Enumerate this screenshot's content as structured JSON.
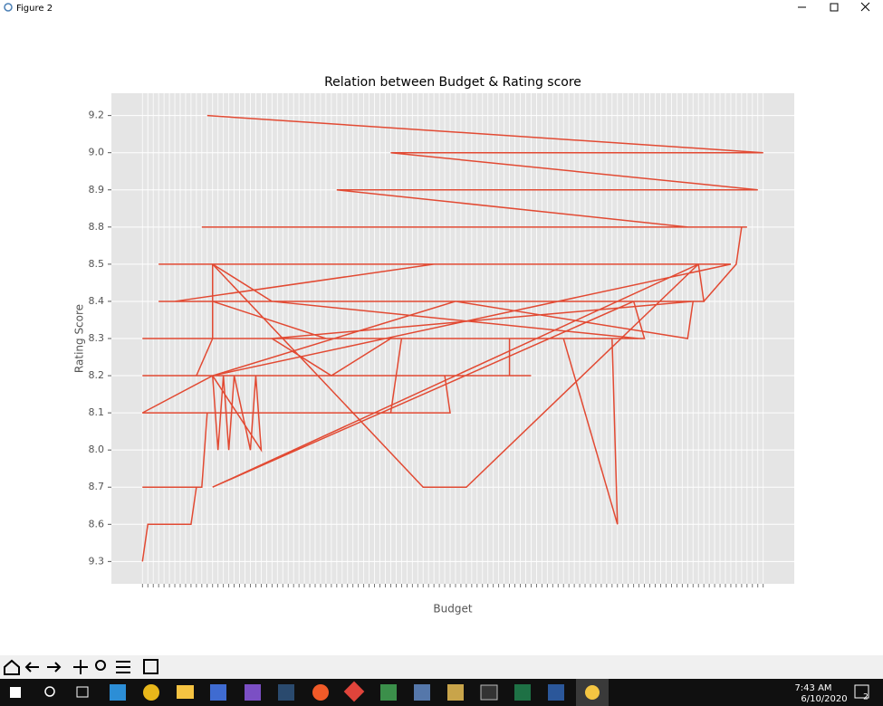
{
  "window": {
    "title": "Figure 2"
  },
  "chart_data": {
    "type": "line",
    "title": "Relation between Budget & Rating score",
    "xlabel": "Budget",
    "ylabel": "Rating Score",
    "categories": [
      null,
      null,
      null,
      null,
      null,
      null,
      null,
      null,
      null,
      null,
      null,
      null,
      null,
      null,
      null,
      null,
      null,
      null,
      null,
      null,
      null,
      null,
      null,
      null,
      null,
      null,
      null,
      null,
      null,
      null,
      null,
      null,
      null,
      null,
      null,
      null,
      null,
      null,
      null,
      null,
      null,
      null,
      null,
      null,
      null,
      null,
      null,
      null,
      null,
      null,
      null,
      null,
      null,
      null,
      null,
      null,
      null,
      null,
      null,
      null,
      null,
      null,
      null,
      null,
      null,
      null,
      null,
      null,
      null,
      null,
      null,
      null,
      null,
      null,
      null,
      null,
      null,
      null,
      null,
      null,
      null,
      null,
      null,
      null,
      null,
      null,
      null,
      null,
      null,
      null,
      null,
      null,
      null,
      null,
      null,
      null,
      null,
      null,
      null,
      null,
      null,
      null,
      null,
      null,
      null,
      null,
      null,
      null,
      null,
      null,
      null,
      null,
      null,
      null,
      null,
      null
    ],
    "xlim": [
      -5.75,
      120.75
    ],
    "ylim": [
      -0.6,
      12.6
    ],
    "yticks": [
      {
        "value": 0,
        "label": "9.3"
      },
      {
        "value": 1,
        "label": "8.6"
      },
      {
        "value": 2,
        "label": "8.7"
      },
      {
        "value": 3,
        "label": "8.0"
      },
      {
        "value": 4,
        "label": "8.1"
      },
      {
        "value": 5,
        "label": "8.2"
      },
      {
        "value": 6,
        "label": "8.3"
      },
      {
        "value": 7,
        "label": "8.4"
      },
      {
        "value": 8,
        "label": "8.5"
      },
      {
        "value": 9,
        "label": "8.8"
      },
      {
        "value": 10,
        "label": "8.9"
      },
      {
        "value": 11,
        "label": "9.0"
      },
      {
        "value": 12,
        "label": "9.2"
      }
    ],
    "grid": true,
    "series": [
      {
        "color": "#e24a33",
        "x": [
          0,
          1,
          9,
          10,
          0,
          11,
          12,
          0,
          13,
          14,
          15,
          16,
          17,
          20,
          21,
          22,
          13,
          0,
          10,
          13,
          0,
          13,
          13,
          3,
          13,
          24,
          3,
          13,
          34,
          48,
          46,
          0,
          57,
          56,
          0,
          72,
          68,
          68,
          13,
          93,
          91,
          13,
          104,
          103,
          13,
          52,
          60,
          103,
          13,
          91,
          24,
          92,
          78,
          88,
          87,
          13,
          46,
          35,
          24,
          102,
          101,
          58,
          13,
          109,
          3,
          54,
          6,
          104,
          110,
          111,
          11,
          112,
          101,
          36,
          114,
          46,
          115,
          12
        ],
        "values": [
          "9.3",
          "8.6",
          "8.6",
          "8.7",
          "8.7",
          "8.7",
          "8.1",
          "8.1",
          "8.2",
          "8.0",
          "8.2",
          "8.0",
          "8.2",
          "8.0",
          "8.2",
          "8.0",
          "8.2",
          "8.2",
          "8.2",
          "8.3",
          "8.3",
          "8.3",
          "8.5",
          "8.5",
          "8.5",
          "8.4",
          "8.4",
          "8.4",
          "8.3",
          "8.3",
          "8.1",
          "8.1",
          "8.1",
          "8.2",
          "8.2",
          "8.2",
          "8.2",
          "8.3",
          "8.3",
          "8.3",
          "8.4",
          "8.4",
          "8.4",
          "8.5",
          "8.5",
          "8.7",
          "8.7",
          "8.5",
          "8.7",
          "8.4",
          "8.4",
          "8.3",
          "8.3",
          "8.6",
          "8.3",
          "8.3",
          "8.3",
          "8.2",
          "8.3",
          "8.4",
          "8.3",
          "8.4",
          "8.2",
          "8.5",
          "8.5",
          "8.5",
          "8.4",
          "8.4",
          "8.5",
          "8.8",
          "8.8",
          "8.8",
          "8.8",
          "8.9",
          "8.9",
          "9.0",
          "9.0",
          "9.2"
        ]
      }
    ]
  },
  "taskbar": {
    "time": "7:43 AM",
    "date": "6/10/2020",
    "notifications": "2"
  }
}
